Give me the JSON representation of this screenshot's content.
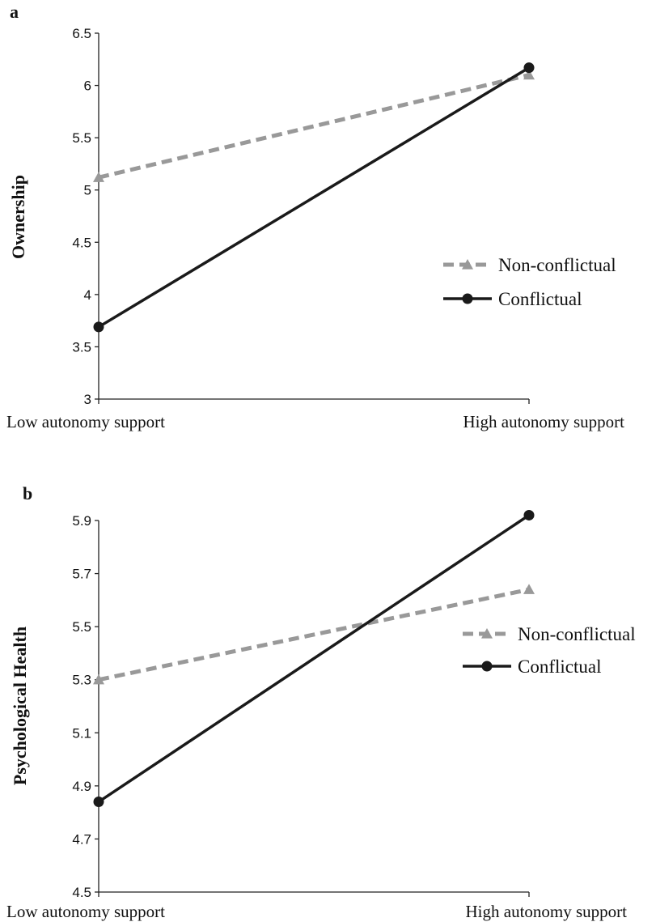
{
  "chart_data": [
    {
      "type": "line",
      "panel_label": "a",
      "ylabel": "Ownership",
      "categories": [
        "Low autonomy support",
        "High autonomy support"
      ],
      "ylim": [
        3,
        6.5
      ],
      "yticks": [
        "3",
        "3.5",
        "4",
        "4.5",
        "5",
        "5.5",
        "6",
        "6.5"
      ],
      "series": [
        {
          "name": "Non-conflictual",
          "values": [
            5.12,
            6.1
          ],
          "color": "#999999",
          "dashed": true,
          "marker": "triangle"
        },
        {
          "name": "Conflictual",
          "values": [
            3.69,
            6.17
          ],
          "color": "#1a1a1a",
          "dashed": false,
          "marker": "circle"
        }
      ],
      "legend": "right"
    },
    {
      "type": "line",
      "panel_label": "b",
      "ylabel": "Psychological Health",
      "categories": [
        "Low autonomy support",
        "High autonomy support"
      ],
      "ylim": [
        4.5,
        5.9
      ],
      "yticks": [
        "4.5",
        "4.7",
        "4.9",
        "5.1",
        "5.3",
        "5.5",
        "5.7",
        "5.9"
      ],
      "series": [
        {
          "name": "Non-conflictual",
          "values": [
            5.3,
            5.64
          ],
          "color": "#999999",
          "dashed": true,
          "marker": "triangle"
        },
        {
          "name": "Conflictual",
          "values": [
            4.84,
            5.92
          ],
          "color": "#1a1a1a",
          "dashed": false,
          "marker": "circle"
        }
      ],
      "legend": "right"
    }
  ]
}
